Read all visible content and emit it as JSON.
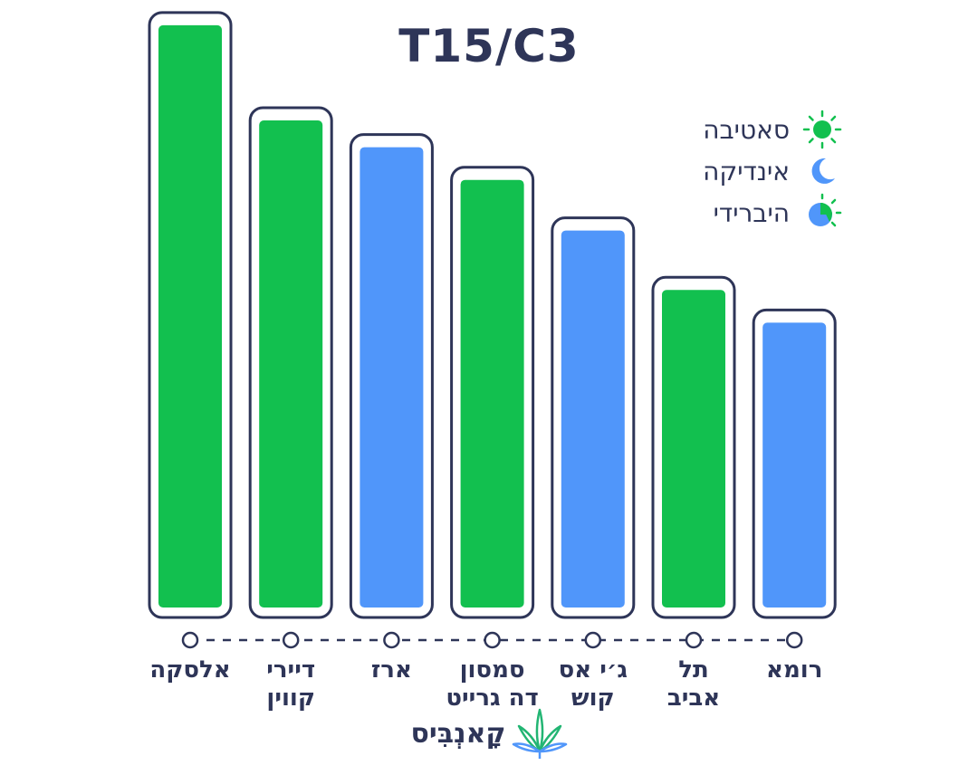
{
  "chart_data": {
    "type": "bar",
    "title": "T15/C3",
    "xlabel": "",
    "ylabel": "",
    "categories": [
      [
        "אלסקה"
      ],
      [
        "דיירי",
        "קווין"
      ],
      [
        "ארז"
      ],
      [
        "סמסון",
        "דה גרייט"
      ],
      [
        "ג׳י אס",
        "קוש"
      ],
      [
        "תל",
        "אביב"
      ],
      [
        "רומא"
      ]
    ],
    "values": [
      20,
      16.8,
      15.9,
      14.8,
      13.1,
      11.1,
      10.0
    ],
    "types": [
      "sativa",
      "sativa",
      "indica",
      "sativa",
      "indica",
      "sativa",
      "indica"
    ],
    "ylim": [
      0,
      21
    ],
    "grid": false,
    "legend_position": "top-right",
    "legend": [
      {
        "key": "sativa",
        "label": "סאטיבה",
        "icon": "sun-icon"
      },
      {
        "key": "indica",
        "label": "אינדיקה",
        "icon": "moon-icon"
      },
      {
        "key": "hybrid",
        "label": "היברידי",
        "icon": "half-sun-moon-icon"
      }
    ],
    "colors": {
      "sativa": "#12c04f",
      "indica": "#5096fa",
      "outline": "#2e3558"
    }
  },
  "brand": {
    "name": "קָאנְבִּיס",
    "icon": "cannabis-leaf-icon"
  }
}
